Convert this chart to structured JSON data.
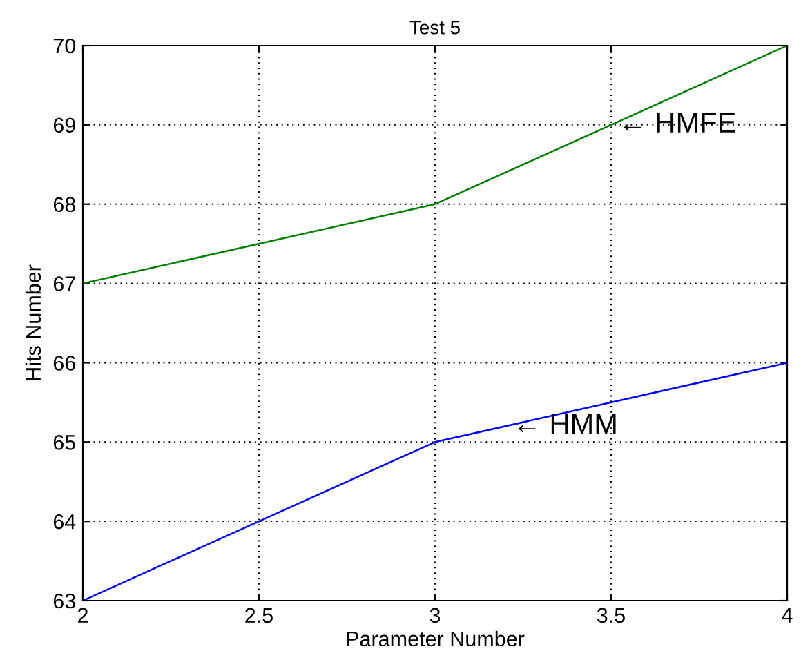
{
  "chart_data": {
    "type": "line",
    "title": "Test 5",
    "xlabel": "Parameter Number",
    "ylabel": "Hits Number",
    "x": [
      2,
      3,
      4
    ],
    "series": [
      {
        "color": "#008000",
        "values": [
          67,
          68,
          70
        ]
      },
      {
        "color": "#0000ff",
        "values": [
          63,
          65,
          66
        ]
      }
    ],
    "xlim": [
      2,
      4
    ],
    "xticks": [
      2,
      2.5,
      3,
      3.5,
      4
    ],
    "ylim": [
      63,
      70
    ],
    "yticks": [
      63,
      64,
      65,
      66,
      67,
      68,
      69,
      70
    ],
    "grid": true,
    "line_style": "solid",
    "marker": "none",
    "annotations": [
      {
        "text": "← HMFE",
        "x": 3.52,
        "y": 69
      },
      {
        "text": "← HMM",
        "x": 3.22,
        "y": 65.2
      }
    ]
  }
}
